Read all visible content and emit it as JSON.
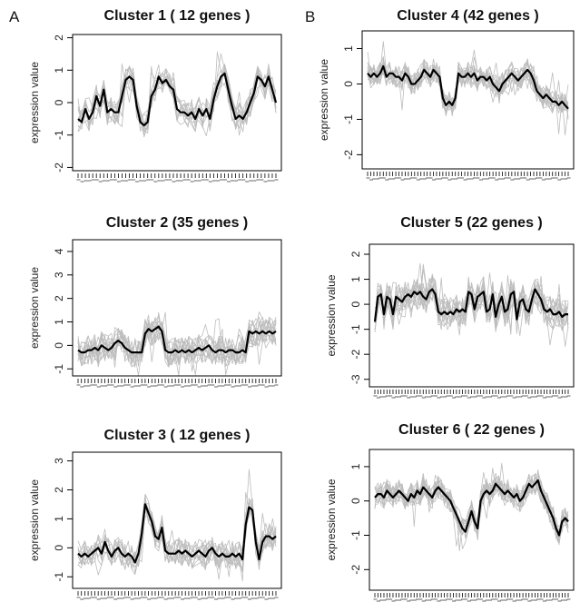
{
  "panel_labels": [
    "A",
    "B"
  ],
  "colors": {
    "gene_line": "#bdbdbd",
    "mean_line": "#000000",
    "axis": "#000000",
    "background": "#ffffff"
  },
  "chart_data": [
    {
      "type": "line",
      "panel": "A",
      "title": "Cluster 1 ( 12 genes )",
      "ylabel": "expression value",
      "xlabel": "",
      "ylim": [
        -2.1,
        2.1
      ],
      "yticks": [
        -2,
        -1,
        0,
        1,
        2
      ],
      "n_points": 55,
      "n_genes": 12,
      "mean_series": {
        "name": "",
        "values": [
          -0.5,
          -0.6,
          -0.2,
          -0.5,
          -0.3,
          0.2,
          -0.1,
          0.4,
          -0.3,
          -0.2,
          -0.3,
          -0.3,
          0.2,
          0.7,
          0.8,
          0.7,
          -0.1,
          -0.6,
          -0.7,
          -0.6,
          0.2,
          0.4,
          0.8,
          0.6,
          0.7,
          0.5,
          0.4,
          -0.2,
          -0.3,
          -0.3,
          -0.4,
          -0.3,
          -0.5,
          -0.2,
          -0.4,
          -0.2,
          -0.5,
          0.1,
          0.5,
          0.8,
          0.9,
          0.4,
          -0.1,
          -0.5,
          -0.4,
          -0.5,
          -0.3,
          0.0,
          0.3,
          0.8,
          0.7,
          0.5,
          0.8,
          0.4,
          0.0
        ]
      },
      "gene_spread": 0.4
    },
    {
      "type": "line",
      "panel": "A",
      "title": "Cluster 2 (35 genes )",
      "ylabel": "expression value",
      "xlabel": "",
      "ylim": [
        -1.3,
        4.5
      ],
      "yticks": [
        -1,
        0,
        1,
        2,
        3,
        4
      ],
      "n_points": 60,
      "n_genes": 35,
      "mean_series": {
        "name": "",
        "values": [
          -0.2,
          -0.3,
          -0.3,
          -0.2,
          -0.2,
          -0.1,
          -0.2,
          0.0,
          -0.1,
          -0.2,
          -0.1,
          0.1,
          0.2,
          0.1,
          -0.1,
          -0.2,
          -0.3,
          -0.3,
          -0.3,
          -0.3,
          0.5,
          0.7,
          0.6,
          0.7,
          0.8,
          0.6,
          -0.2,
          -0.3,
          -0.3,
          -0.2,
          -0.3,
          -0.2,
          -0.3,
          -0.2,
          -0.3,
          -0.2,
          -0.1,
          -0.2,
          -0.1,
          0.0,
          -0.2,
          -0.3,
          -0.2,
          -0.2,
          -0.3,
          -0.2,
          -0.2,
          -0.3,
          -0.3,
          -0.2,
          -0.3,
          0.6,
          0.5,
          0.6,
          0.5,
          0.6,
          0.5,
          0.6,
          0.5,
          0.6
        ]
      },
      "gene_spread": 0.45
    },
    {
      "type": "line",
      "panel": "A",
      "title": "Cluster 3 ( 12 genes )",
      "ylabel": "expression value",
      "xlabel": "",
      "ylim": [
        -1.4,
        3.3
      ],
      "yticks": [
        -1,
        0,
        1,
        2,
        3
      ],
      "n_points": 60,
      "n_genes": 12,
      "mean_series": {
        "name": "",
        "values": [
          -0.2,
          -0.3,
          -0.2,
          -0.3,
          -0.2,
          -0.1,
          0.0,
          -0.2,
          0.2,
          -0.1,
          -0.3,
          -0.1,
          0.0,
          -0.2,
          -0.3,
          -0.2,
          -0.3,
          -0.5,
          -0.2,
          0.5,
          1.5,
          1.2,
          0.9,
          0.4,
          0.3,
          0.7,
          -0.1,
          -0.2,
          -0.2,
          -0.2,
          -0.1,
          -0.2,
          -0.1,
          -0.2,
          -0.3,
          -0.2,
          -0.1,
          -0.2,
          -0.3,
          -0.1,
          0.0,
          -0.2,
          -0.3,
          -0.2,
          -0.3,
          -0.3,
          -0.2,
          -0.3,
          -0.2,
          -0.4,
          0.8,
          1.4,
          1.3,
          0.2,
          -0.4,
          0.2,
          0.4,
          0.4,
          0.3,
          0.4
        ]
      },
      "gene_spread": 0.4
    },
    {
      "type": "line",
      "panel": "B",
      "title": "Cluster 4 (42 genes )",
      "ylabel": "expression value",
      "xlabel": "",
      "ylim": [
        -2.4,
        1.5
      ],
      "yticks": [
        -2,
        -1,
        0,
        1
      ],
      "n_points": 65,
      "n_genes": 42,
      "mean_series": {
        "name": "",
        "values": [
          0.3,
          0.2,
          0.3,
          0.2,
          0.3,
          0.5,
          0.2,
          0.3,
          0.3,
          0.2,
          0.2,
          0.1,
          0.3,
          0.2,
          0.0,
          0.0,
          0.1,
          0.2,
          0.4,
          0.3,
          0.2,
          0.4,
          0.3,
          0.2,
          -0.4,
          -0.6,
          -0.5,
          -0.6,
          -0.4,
          0.3,
          0.2,
          0.2,
          0.3,
          0.2,
          0.3,
          0.1,
          0.2,
          0.2,
          0.1,
          0.2,
          0.0,
          -0.1,
          -0.2,
          0.0,
          0.1,
          0.2,
          0.3,
          0.2,
          0.1,
          0.2,
          0.3,
          0.4,
          0.3,
          0.1,
          -0.2,
          -0.3,
          -0.4,
          -0.3,
          -0.4,
          -0.5,
          -0.5,
          -0.6,
          -0.5,
          -0.6,
          -0.7
        ]
      },
      "gene_spread": 0.35
    },
    {
      "type": "line",
      "panel": "B",
      "title": "Cluster 5 (22 genes )",
      "ylabel": "expression value",
      "xlabel": "",
      "ylim": [
        -3.3,
        2.4
      ],
      "yticks": [
        -3,
        -2,
        -1,
        0,
        1,
        2
      ],
      "n_points": 65,
      "n_genes": 22,
      "mean_series": {
        "name": "",
        "values": [
          -0.7,
          0.3,
          0.4,
          -0.4,
          0.3,
          0.2,
          -0.4,
          0.3,
          0.2,
          0.1,
          0.3,
          0.4,
          0.3,
          0.5,
          0.4,
          0.5,
          0.3,
          0.2,
          0.5,
          0.6,
          0.4,
          -0.3,
          -0.4,
          -0.3,
          -0.4,
          -0.3,
          -0.4,
          -0.2,
          -0.3,
          -0.2,
          -0.3,
          0.5,
          0.4,
          -0.2,
          0.3,
          0.4,
          0.5,
          -0.3,
          -0.2,
          0.4,
          -0.5,
          0.0,
          0.3,
          -0.3,
          -0.2,
          0.4,
          0.5,
          -0.6,
          0.1,
          0.2,
          -0.2,
          -0.3,
          0.2,
          0.6,
          0.4,
          0.2,
          -0.2,
          -0.3,
          -0.2,
          -0.4,
          -0.4,
          -0.3,
          -0.5,
          -0.4,
          -0.4
        ]
      },
      "gene_spread": 0.45
    },
    {
      "type": "line",
      "panel": "B",
      "title": "Cluster 6 ( 22 genes )",
      "ylabel": "expression value",
      "xlabel": "",
      "ylim": [
        -2.6,
        1.5
      ],
      "yticks": [
        -2,
        -1,
        0,
        1
      ],
      "n_points": 65,
      "n_genes": 22,
      "mean_series": {
        "name": "",
        "values": [
          0.1,
          0.2,
          0.2,
          0.1,
          0.3,
          0.2,
          0.1,
          0.2,
          0.3,
          0.2,
          0.1,
          0.0,
          0.2,
          0.1,
          0.3,
          0.2,
          0.4,
          0.3,
          0.2,
          0.1,
          0.3,
          0.4,
          0.3,
          0.2,
          0.1,
          0.0,
          -0.2,
          -0.4,
          -0.6,
          -0.8,
          -0.9,
          -0.6,
          -0.3,
          -0.6,
          -0.8,
          0.0,
          0.2,
          0.3,
          0.2,
          0.3,
          0.5,
          0.4,
          0.3,
          0.2,
          0.3,
          0.2,
          0.1,
          0.2,
          0.0,
          0.1,
          0.3,
          0.5,
          0.4,
          0.5,
          0.6,
          0.3,
          0.1,
          -0.1,
          -0.3,
          -0.5,
          -0.8,
          -1.0,
          -0.6,
          -0.5,
          -0.6
        ]
      },
      "gene_spread": 0.35
    }
  ]
}
